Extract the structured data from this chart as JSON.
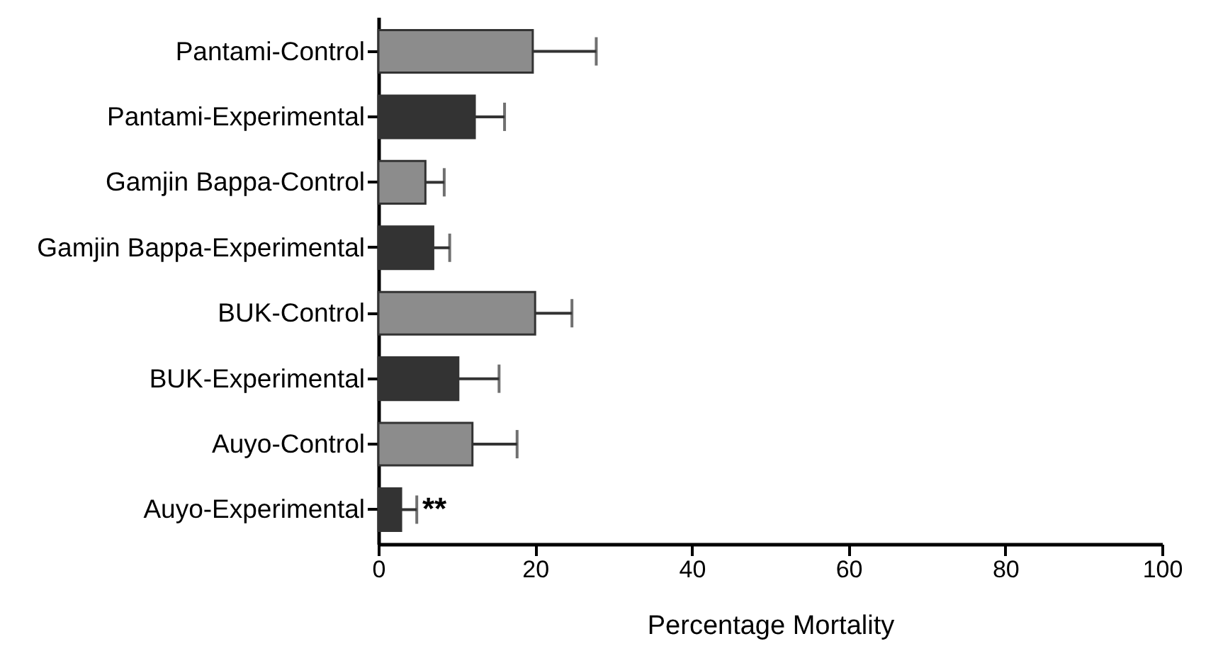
{
  "chart_data": {
    "type": "bar",
    "orientation": "horizontal",
    "xlabel": "Percentage Mortality",
    "categories": [
      "Pantami-Control",
      "Pantami-Experimental",
      "Gamjin Bappa-Control",
      "Gamjin Bappa-Experimental",
      "BUK-Control",
      "BUK-Experimental",
      "Auyo-Control",
      "Auyo-Experimental"
    ],
    "values": [
      19.7,
      12.3,
      6.0,
      7.0,
      20.0,
      10.2,
      12.0,
      2.9
    ],
    "errors": [
      8.1,
      3.8,
      2.4,
      2.1,
      4.7,
      5.2,
      5.7,
      2.0
    ],
    "colors": [
      "#8c8c8c",
      "#333333",
      "#8c8c8c",
      "#333333",
      "#8c8c8c",
      "#333333",
      "#8c8c8c",
      "#333333"
    ],
    "xlim": [
      0,
      100
    ],
    "xticks": [
      0,
      20,
      40,
      60,
      80,
      100
    ],
    "grid": false,
    "annotations": [
      {
        "text": "**",
        "x": 5.6,
        "y": "Auyo-Experimental"
      }
    ]
  }
}
